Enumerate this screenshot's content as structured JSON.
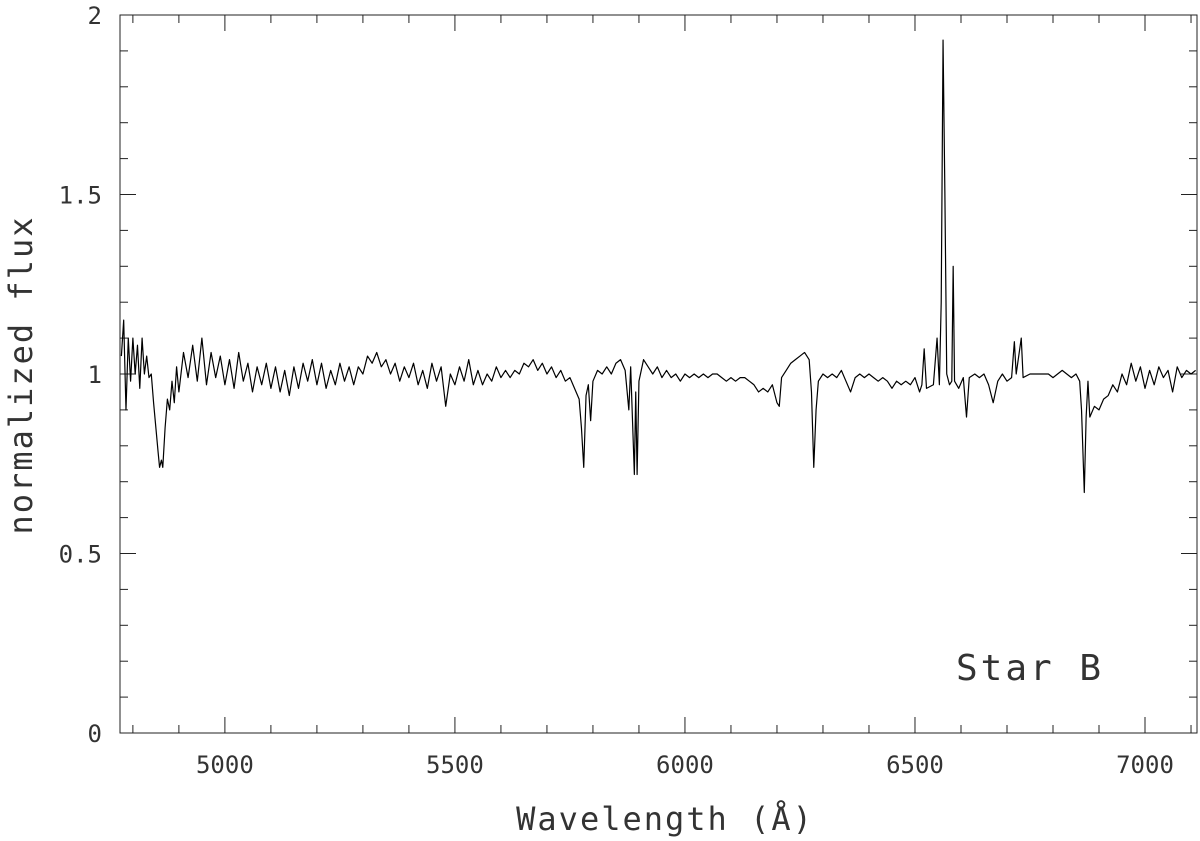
{
  "chart_data": {
    "type": "line",
    "xlabel": "Wavelength (Å)",
    "ylabel": "normalized flux",
    "annotation": "Star B",
    "color": "#000000",
    "xlim": [
      4772,
      7113
    ],
    "ylim": [
      0,
      2
    ],
    "xticks": [
      5000,
      5500,
      6000,
      6500,
      7000
    ],
    "yticks": [
      0,
      0.5,
      1,
      1.5,
      2
    ],
    "xminorticks": [
      4800,
      4900,
      5100,
      5200,
      5300,
      5400,
      5600,
      5700,
      5800,
      5900,
      6100,
      6200,
      6300,
      6400,
      6600,
      6700,
      6800,
      6900,
      7100
    ],
    "yminorticks": [
      0.1,
      0.2,
      0.3,
      0.4,
      0.6,
      0.7,
      0.8,
      0.9,
      1.1,
      1.2,
      1.3,
      1.4,
      1.6,
      1.7,
      1.8,
      1.9
    ],
    "x": [
      4775,
      4780,
      4785,
      4790,
      4795,
      4800,
      4805,
      4810,
      4815,
      4820,
      4825,
      4830,
      4835,
      4840,
      4845,
      4850,
      4855,
      4858,
      4862,
      4865,
      4870,
      4875,
      4880,
      4885,
      4890,
      4895,
      4900,
      4910,
      4920,
      4930,
      4940,
      4950,
      4960,
      4970,
      4980,
      4990,
      5000,
      5010,
      5020,
      5030,
      5040,
      5050,
      5060,
      5070,
      5080,
      5090,
      5100,
      5110,
      5120,
      5130,
      5140,
      5150,
      5160,
      5170,
      5180,
      5190,
      5200,
      5210,
      5220,
      5230,
      5240,
      5250,
      5260,
      5270,
      5280,
      5290,
      5300,
      5310,
      5320,
      5330,
      5340,
      5350,
      5360,
      5370,
      5380,
      5390,
      5400,
      5410,
      5420,
      5430,
      5440,
      5450,
      5460,
      5470,
      5480,
      5490,
      5500,
      5510,
      5520,
      5530,
      5540,
      5550,
      5560,
      5570,
      5580,
      5590,
      5600,
      5610,
      5620,
      5630,
      5640,
      5650,
      5660,
      5670,
      5680,
      5690,
      5700,
      5710,
      5720,
      5730,
      5740,
      5750,
      5760,
      5770,
      5775,
      5780,
      5785,
      5790,
      5795,
      5800,
      5810,
      5820,
      5830,
      5840,
      5850,
      5860,
      5870,
      5878,
      5882,
      5890,
      5893,
      5896,
      5900,
      5910,
      5920,
      5930,
      5940,
      5950,
      5960,
      5970,
      5980,
      5990,
      6000,
      6010,
      6020,
      6030,
      6040,
      6050,
      6060,
      6070,
      6080,
      6090,
      6100,
      6110,
      6120,
      6130,
      6140,
      6150,
      6160,
      6170,
      6180,
      6190,
      6200,
      6205,
      6210,
      6220,
      6230,
      6240,
      6250,
      6260,
      6270,
      6275,
      6280,
      6285,
      6290,
      6300,
      6310,
      6320,
      6330,
      6340,
      6350,
      6360,
      6370,
      6380,
      6390,
      6400,
      6410,
      6420,
      6430,
      6440,
      6450,
      6460,
      6470,
      6480,
      6490,
      6500,
      6510,
      6515,
      6520,
      6525,
      6540,
      6548,
      6553,
      6557,
      6561,
      6565,
      6569,
      6575,
      6580,
      6583,
      6586,
      6595,
      6605,
      6612,
      6618,
      6630,
      6640,
      6650,
      6660,
      6670,
      6680,
      6690,
      6700,
      6710,
      6716,
      6720,
      6731,
      6735,
      6750,
      6760,
      6770,
      6780,
      6790,
      6800,
      6810,
      6820,
      6830,
      6840,
      6850,
      6858,
      6862,
      6868,
      6872,
      6876,
      6880,
      6890,
      6900,
      6910,
      6920,
      6930,
      6940,
      6950,
      6960,
      6970,
      6980,
      6990,
      7000,
      7010,
      7020,
      7030,
      7040,
      7050,
      7060,
      7070,
      7080,
      7090,
      7100,
      7110
    ],
    "values": [
      1.05,
      1.15,
      0.9,
      1.1,
      0.98,
      1.1,
      1.0,
      1.08,
      0.96,
      1.1,
      1.0,
      1.05,
      0.99,
      1.0,
      0.92,
      0.85,
      0.78,
      0.74,
      0.76,
      0.74,
      0.85,
      0.93,
      0.9,
      0.98,
      0.92,
      1.02,
      0.95,
      1.06,
      0.99,
      1.08,
      0.98,
      1.1,
      0.97,
      1.06,
      0.99,
      1.05,
      0.97,
      1.04,
      0.96,
      1.06,
      0.98,
      1.03,
      0.95,
      1.02,
      0.97,
      1.03,
      0.96,
      1.02,
      0.95,
      1.01,
      0.94,
      1.02,
      0.96,
      1.03,
      0.98,
      1.04,
      0.97,
      1.03,
      0.96,
      1.01,
      0.97,
      1.03,
      0.98,
      1.02,
      0.97,
      1.02,
      1.0,
      1.05,
      1.03,
      1.06,
      1.02,
      1.04,
      1.0,
      1.03,
      0.98,
      1.02,
      0.99,
      1.03,
      0.97,
      1.01,
      0.96,
      1.03,
      0.98,
      1.02,
      0.91,
      1.0,
      0.97,
      1.02,
      0.98,
      1.04,
      0.97,
      1.01,
      0.97,
      1.0,
      0.98,
      1.02,
      0.99,
      1.01,
      0.99,
      1.01,
      1.0,
      1.03,
      1.02,
      1.04,
      1.01,
      1.03,
      1.0,
      1.02,
      0.99,
      1.01,
      0.98,
      0.99,
      0.96,
      0.93,
      0.85,
      0.74,
      0.94,
      0.97,
      0.87,
      0.98,
      1.01,
      1.0,
      1.02,
      1.0,
      1.03,
      1.04,
      1.01,
      0.9,
      1.02,
      0.72,
      0.95,
      0.72,
      0.98,
      1.04,
      1.02,
      1.0,
      1.02,
      0.99,
      1.01,
      0.99,
      1.0,
      0.98,
      1.0,
      0.99,
      1.0,
      0.99,
      1.0,
      0.99,
      1.0,
      1.0,
      0.99,
      0.98,
      0.99,
      0.98,
      0.99,
      0.99,
      0.98,
      0.97,
      0.95,
      0.96,
      0.95,
      0.97,
      0.92,
      0.91,
      0.99,
      1.01,
      1.03,
      1.04,
      1.05,
      1.06,
      1.04,
      0.95,
      0.74,
      0.9,
      0.98,
      1.0,
      0.99,
      1.0,
      0.99,
      1.01,
      0.98,
      0.95,
      0.99,
      1.0,
      0.99,
      1.0,
      0.99,
      0.98,
      0.99,
      0.98,
      0.96,
      0.98,
      0.97,
      0.98,
      0.97,
      0.99,
      0.95,
      0.97,
      1.07,
      0.96,
      0.97,
      1.1,
      0.97,
      1.2,
      1.93,
      1.5,
      1.0,
      0.97,
      0.98,
      1.3,
      0.98,
      0.96,
      0.99,
      0.88,
      0.99,
      1.0,
      0.99,
      1.0,
      0.97,
      0.92,
      0.98,
      1.0,
      0.98,
      0.99,
      1.09,
      1.0,
      1.1,
      0.99,
      1.0,
      1.0,
      1.0,
      1.0,
      1.0,
      0.99,
      1.0,
      1.01,
      1.0,
      0.99,
      1.0,
      0.98,
      0.9,
      0.67,
      0.88,
      0.98,
      0.88,
      0.91,
      0.9,
      0.93,
      0.94,
      0.97,
      0.95,
      1.0,
      0.97,
      1.03,
      0.98,
      1.02,
      0.96,
      1.01,
      0.97,
      1.02,
      0.99,
      1.01,
      0.95,
      1.02,
      0.99,
      1.01,
      1.0,
      1.01
    ]
  }
}
